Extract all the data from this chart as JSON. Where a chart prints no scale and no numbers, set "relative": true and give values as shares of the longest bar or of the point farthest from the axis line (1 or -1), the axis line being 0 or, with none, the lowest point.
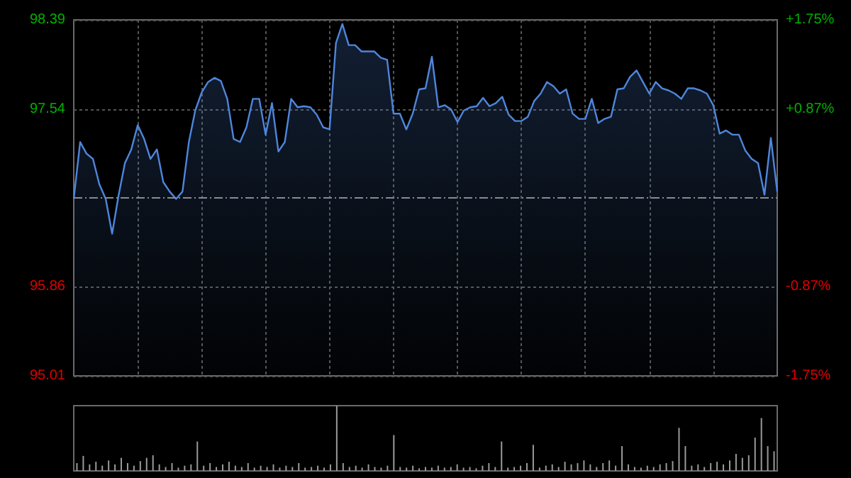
{
  "chart_data": [
    {
      "type": "area",
      "categories": [
        null,
        null,
        null,
        null,
        null,
        null,
        null,
        null,
        null,
        null,
        null,
        null,
        null,
        null,
        null,
        null,
        null,
        null,
        null,
        null,
        null,
        null,
        null,
        null,
        null,
        null,
        null,
        null,
        null,
        null,
        null,
        null,
        null,
        null,
        null,
        null,
        null,
        null,
        null,
        null,
        null,
        null,
        null,
        null,
        null,
        null,
        null,
        null,
        null,
        null,
        null,
        null,
        null,
        null,
        null,
        null,
        null,
        null,
        null,
        null,
        null,
        null,
        null,
        null,
        null,
        null,
        null,
        null,
        null,
        null,
        null,
        null,
        null,
        null,
        null,
        null,
        null,
        null,
        null,
        null,
        null,
        null,
        null,
        null,
        null,
        null,
        null,
        null,
        null,
        null,
        null,
        null,
        null,
        null,
        null,
        null,
        null,
        null,
        null,
        null,
        null,
        null,
        null,
        null,
        null,
        null,
        null,
        null,
        null,
        null,
        null
      ],
      "series": [
        {
          "color": "#4f86dc",
          "values": [
            96.69,
            97.23,
            97.12,
            97.07,
            96.83,
            96.69,
            96.36,
            96.72,
            97.03,
            97.16,
            97.39,
            97.26,
            97.07,
            97.16,
            96.85,
            96.76,
            96.69,
            96.76,
            97.23,
            97.53,
            97.7,
            97.8,
            97.84,
            97.81,
            97.64,
            97.26,
            97.23,
            97.37,
            97.64,
            97.64,
            97.3,
            97.6,
            97.14,
            97.23,
            97.64,
            97.56,
            97.57,
            97.56,
            97.49,
            97.37,
            97.35,
            98.17,
            98.35,
            98.15,
            98.15,
            98.09,
            98.09,
            98.09,
            98.03,
            98.01,
            97.5,
            97.5,
            97.35,
            97.5,
            97.73,
            97.74,
            98.04,
            97.56,
            97.58,
            97.54,
            97.42,
            97.53,
            97.56,
            97.57,
            97.65,
            97.57,
            97.6,
            97.66,
            97.49,
            97.43,
            97.43,
            97.47,
            97.62,
            97.69,
            97.8,
            97.76,
            97.69,
            97.73,
            97.5,
            97.45,
            97.45,
            97.64,
            97.41,
            97.45,
            97.47,
            97.73,
            97.74,
            97.85,
            97.91,
            97.8,
            97.69,
            97.8,
            97.74,
            97.72,
            97.69,
            97.64,
            97.74,
            97.74,
            97.72,
            97.69,
            97.58,
            97.31,
            97.34,
            97.3,
            97.3,
            97.15,
            97.07,
            97.03,
            96.73,
            97.27,
            96.76
          ]
        }
      ],
      "ylim": [
        95.01,
        98.39
      ],
      "yticks": [
        95.01,
        95.86,
        97.54,
        98.39
      ],
      "y2lim": [
        -1.75,
        1.75
      ],
      "y2ticks": [
        {
          "value": -1.75,
          "label": "-1.75%"
        },
        {
          "value": -0.87,
          "label": "-0.87%"
        },
        {
          "value": 0.87,
          "label": "+0.87%"
        },
        {
          "value": 1.75,
          "label": "+1.75%"
        }
      ],
      "ref_lines": [
        {
          "axis": "y",
          "value": 96.7,
          "color": "#8a8a8a",
          "line_style": "dashed"
        }
      ],
      "grid": true,
      "tick_labels": "y"
    },
    {
      "type": "bar",
      "relative": true,
      "categories": [
        null,
        null,
        null,
        null,
        null,
        null,
        null,
        null,
        null,
        null,
        null,
        null,
        null,
        null,
        null,
        null,
        null,
        null,
        null,
        null,
        null,
        null,
        null,
        null,
        null,
        null,
        null,
        null,
        null,
        null,
        null,
        null,
        null,
        null,
        null,
        null,
        null,
        null,
        null,
        null,
        null,
        null,
        null,
        null,
        null,
        null,
        null,
        null,
        null,
        null,
        null,
        null,
        null,
        null,
        null,
        null,
        null,
        null,
        null,
        null,
        null,
        null,
        null,
        null,
        null,
        null,
        null,
        null,
        null,
        null,
        null,
        null,
        null,
        null,
        null,
        null,
        null,
        null,
        null,
        null,
        null,
        null,
        null,
        null,
        null,
        null,
        null,
        null,
        null,
        null,
        null,
        null,
        null,
        null,
        null,
        null,
        null,
        null,
        null,
        null,
        null,
        null,
        null,
        null,
        null,
        null,
        null,
        null,
        null,
        null,
        null
      ],
      "series": [
        {
          "color": "#9a9a9a",
          "values": [
            0.12,
            0.23,
            0.1,
            0.14,
            0.08,
            0.16,
            0.1,
            0.2,
            0.12,
            0.08,
            0.15,
            0.2,
            0.24,
            0.1,
            0.06,
            0.12,
            0.05,
            0.08,
            0.1,
            0.45,
            0.08,
            0.12,
            0.06,
            0.1,
            0.14,
            0.08,
            0.06,
            0.12,
            0.05,
            0.08,
            0.06,
            0.1,
            0.05,
            0.08,
            0.06,
            0.12,
            0.05,
            0.06,
            0.08,
            0.05,
            0.1,
            1.0,
            0.12,
            0.06,
            0.08,
            0.05,
            0.1,
            0.06,
            0.05,
            0.08,
            0.55,
            0.06,
            0.05,
            0.08,
            0.04,
            0.06,
            0.05,
            0.08,
            0.05,
            0.06,
            0.1,
            0.05,
            0.06,
            0.04,
            0.08,
            0.12,
            0.06,
            0.45,
            0.05,
            0.06,
            0.08,
            0.12,
            0.4,
            0.05,
            0.08,
            0.1,
            0.06,
            0.14,
            0.1,
            0.12,
            0.16,
            0.1,
            0.06,
            0.12,
            0.16,
            0.08,
            0.38,
            0.1,
            0.06,
            0.05,
            0.08,
            0.06,
            0.1,
            0.12,
            0.15,
            0.66,
            0.38,
            0.08,
            0.1,
            0.06,
            0.12,
            0.14,
            0.1,
            0.16,
            0.26,
            0.2,
            0.24,
            0.51,
            0.81,
            0.38,
            0.3
          ]
        }
      ],
      "grid": false,
      "tick_labels": false
    }
  ]
}
